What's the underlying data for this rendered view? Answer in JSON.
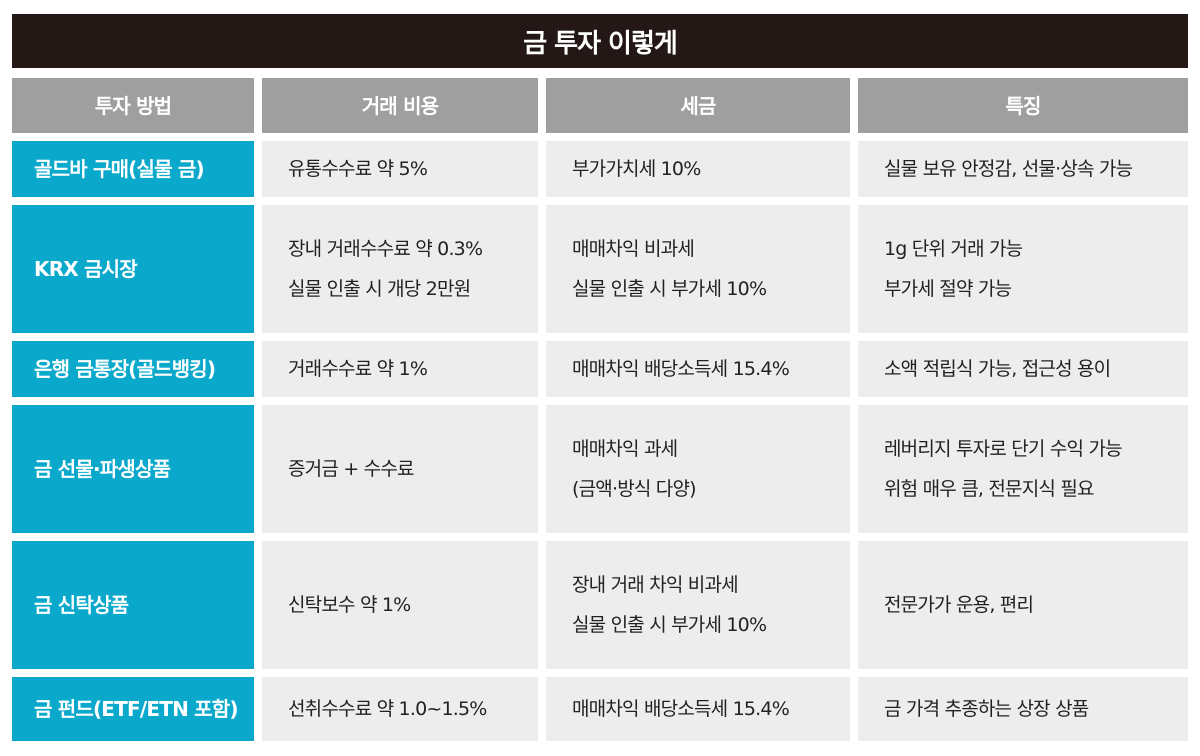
{
  "title": "금 투자 이렇게",
  "colors": {
    "title_bg": "#231815",
    "header_bg": "#9f9f9f",
    "method_bg": "#0aa9cc",
    "cell_bg": "#ededed"
  },
  "headers": [
    "투자 방법",
    "거래 비용",
    "세금",
    "특징"
  ],
  "rows": [
    {
      "method": "골드바 구매(실물 금)",
      "cost": [
        "유통수수료 약 5%"
      ],
      "tax": [
        "부가가치세 10%"
      ],
      "feature": [
        "실물 보유 안정감, 선물·상속 가능"
      ]
    },
    {
      "method": "KRX 금시장",
      "cost": [
        "장내 거래수수료 약 0.3%",
        "실물 인출 시 개당 2만원"
      ],
      "tax": [
        "매매차익 비과세",
        "실물 인출 시 부가세 10%"
      ],
      "feature": [
        "1g 단위 거래 가능",
        "부가세 절약 가능"
      ]
    },
    {
      "method": "은행 금통장(골드뱅킹)",
      "cost": [
        "거래수수료 약 1%"
      ],
      "tax": [
        "매매차익 배당소득세 15.4%"
      ],
      "feature": [
        "소액 적립식 가능, 접근성 용이"
      ]
    },
    {
      "method": "금 선물·파생상품",
      "cost": [
        "증거금 + 수수료"
      ],
      "tax": [
        "매매차익 과세",
        "(금액·방식 다양)"
      ],
      "feature": [
        "레버리지 투자로 단기 수익 가능",
        "위험 매우 큼, 전문지식 필요"
      ]
    },
    {
      "method": "금 신탁상품",
      "cost": [
        "신탁보수 약 1%"
      ],
      "tax": [
        "장내 거래 차익 비과세",
        "실물 인출 시 부가세 10%"
      ],
      "feature": [
        "전문가가 운용, 편리"
      ]
    },
    {
      "method": "금 펀드(ETF/ETN 포함)",
      "cost": [
        "선취수수료 약 1.0~1.5%"
      ],
      "tax": [
        "매매차익 배당소득세 15.4%"
      ],
      "feature": [
        "금 가격 추종하는 상장 상품"
      ]
    }
  ]
}
